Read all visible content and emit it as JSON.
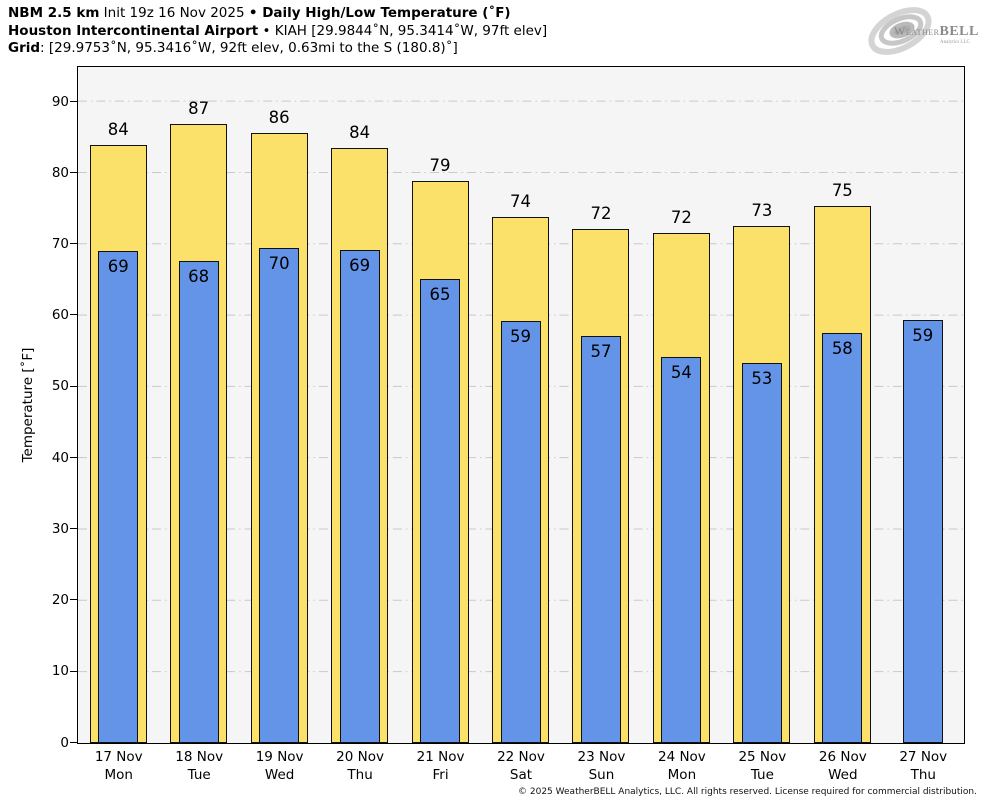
{
  "header": {
    "line1": {
      "model_bold": "NBM 2.5 km",
      "init_text": " Init 19z 16 Nov 2025 ",
      "separator": "•",
      "product_bold": " Daily High/Low Temperature (˚F)"
    },
    "line2": {
      "station_bold": "Houston Intercontinental Airport",
      "separator": " • ",
      "station_meta": "KIAH [29.9844˚N, 95.3414˚W, 97ft elev]"
    },
    "line3": {
      "grid_bold": "Grid",
      "grid_meta": ": [29.9753˚N, 95.3416˚W, 92ft elev, 0.63mi to the S (180.8)˚]"
    }
  },
  "logo": {
    "brand_weather": "Weather",
    "brand_bell": "BELL",
    "subtitle": "Analytics LLC"
  },
  "footer": {
    "copyright": "© 2025 WeatherBELL Analytics, LLC. All rights reserved. License required for commercial distribution."
  },
  "chart_data": {
    "type": "bar",
    "title": "Daily High/Low Temperature (°F)",
    "xlabel": "",
    "ylabel": "Temperature [˚F]",
    "ylim": [
      0,
      90
    ],
    "ytick_interval": 10,
    "yticks": [
      0,
      10,
      20,
      30,
      40,
      50,
      60,
      70,
      80,
      90
    ],
    "grid": "horizontal dash-dot gridlines on",
    "legend_position": "none",
    "categories": [
      {
        "date": "17 Nov",
        "day": "Mon"
      },
      {
        "date": "18 Nov",
        "day": "Tue"
      },
      {
        "date": "19 Nov",
        "day": "Wed"
      },
      {
        "date": "20 Nov",
        "day": "Thu"
      },
      {
        "date": "21 Nov",
        "day": "Fri"
      },
      {
        "date": "22 Nov",
        "day": "Sat"
      },
      {
        "date": "23 Nov",
        "day": "Sun"
      },
      {
        "date": "24 Nov",
        "day": "Mon"
      },
      {
        "date": "25 Nov",
        "day": "Tue"
      },
      {
        "date": "26 Nov",
        "day": "Wed"
      },
      {
        "date": "27 Nov",
        "day": "Thu"
      }
    ],
    "series": [
      {
        "name": "Daily High",
        "color": "#fbe06a",
        "values": [
          84,
          87,
          86,
          84,
          79,
          74,
          72,
          72,
          73,
          75,
          null
        ],
        "bar_values": [
          83.9,
          86.9,
          85.7,
          83.6,
          78.9,
          73.9,
          72.2,
          71.6,
          72.6,
          75.4,
          null
        ]
      },
      {
        "name": "Daily Low",
        "color": "#6494e8",
        "values": [
          69,
          68,
          70,
          69,
          65,
          59,
          57,
          54,
          53,
          58,
          59
        ],
        "bar_values": [
          69.1,
          67.7,
          69.5,
          69.2,
          65.1,
          59.3,
          57.1,
          54.2,
          53.4,
          57.6,
          59.4
        ]
      }
    ],
    "colors": {
      "plot_background": "#f5f5f5",
      "gridline": "#c9c9c9",
      "bar_border": "#111111",
      "axis": "#000000"
    }
  }
}
